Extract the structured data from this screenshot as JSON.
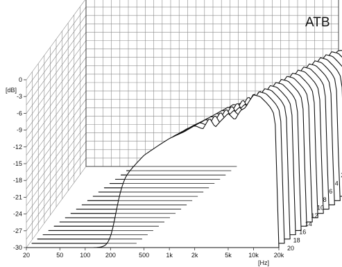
{
  "chart_data": {
    "type": "waterfall",
    "title": "ATB",
    "ylabel": "[dB]",
    "xlabel": "[Hz]",
    "y_ticks": [
      "0",
      "-3",
      "-6",
      "-9",
      "-12",
      "-15",
      "-18",
      "-21",
      "-24",
      "-27",
      "-30"
    ],
    "x_ticks": [
      "20",
      "50",
      "100",
      "200",
      "500",
      "1k",
      "2k",
      "5k",
      "10k",
      "20k"
    ],
    "x_tick_values_hz": [
      20,
      50,
      100,
      200,
      500,
      1000,
      2000,
      5000,
      10000,
      20000
    ],
    "depth_ticks": [
      "2",
      "4",
      "6",
      "8",
      "10",
      "12",
      "14",
      "16",
      "18",
      "20"
    ],
    "ylim": [
      -30,
      0
    ],
    "xlim_hz": [
      20,
      20000
    ],
    "slices": 20,
    "front_slice_response": {
      "freq_hz": [
        20,
        100,
        150,
        200,
        300,
        500,
        700,
        1000,
        1500,
        2000,
        2500,
        3000,
        3500,
        4000,
        5000,
        6000,
        7000,
        8000,
        9000,
        10000,
        12000,
        14000,
        16000,
        18000,
        20000
      ],
      "db": [
        -30,
        -30,
        -24,
        -21,
        -17,
        -13.5,
        -12,
        -10.5,
        -9.3,
        -8.2,
        -8.8,
        -6.8,
        -8.5,
        -7.5,
        -6,
        -7.2,
        -5.5,
        -5,
        -3.7,
        -2.7,
        -3,
        -4,
        -5,
        -6.5,
        -30
      ]
    },
    "colors": {
      "line": "#111111",
      "grid": "#888888",
      "background": "#ffffff"
    }
  }
}
